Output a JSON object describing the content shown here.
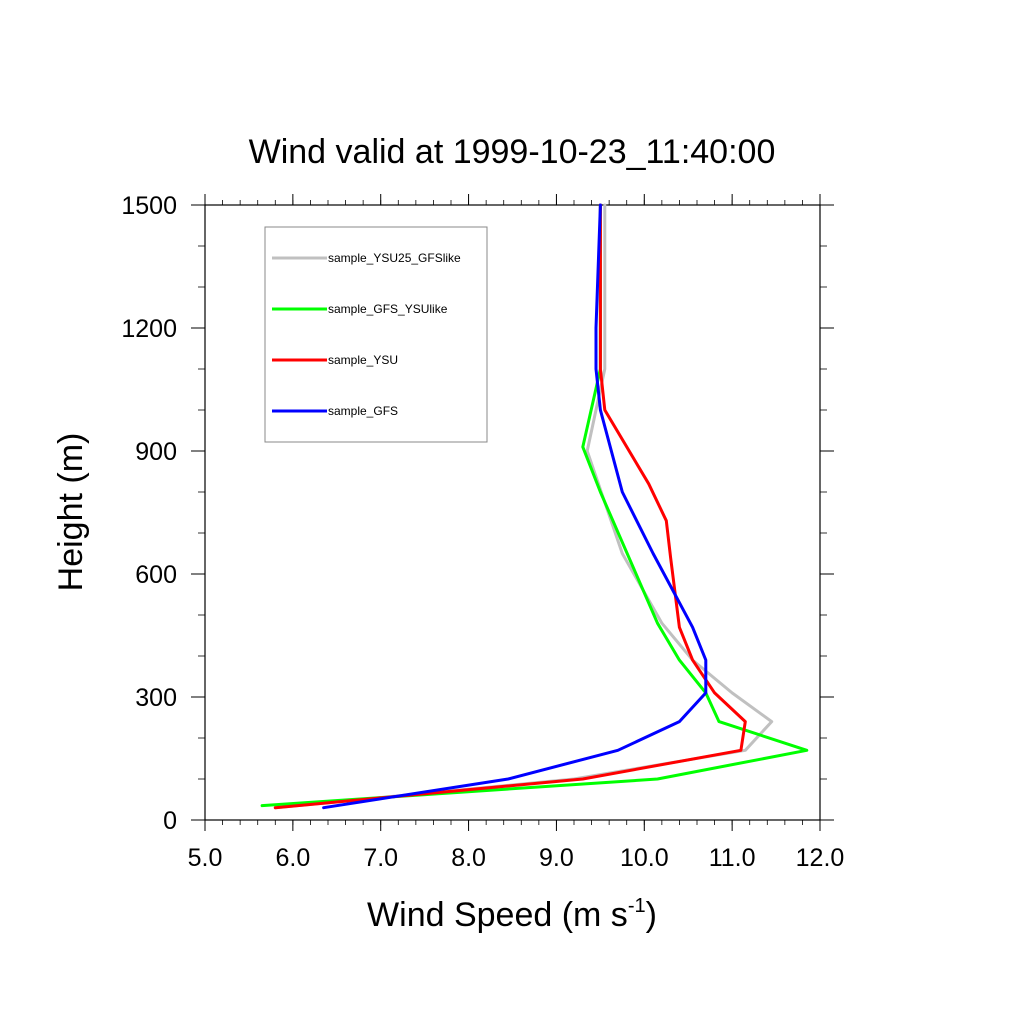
{
  "chart_data": {
    "type": "line",
    "title": "Wind valid at 1999-10-23_11:40:00",
    "xlabel": "Wind Speed (m s",
    "xlabel_sup": "-1",
    "xlabel_end": ")",
    "ylabel": "Height (m)",
    "xlim": [
      5.0,
      12.0
    ],
    "ylim": [
      0,
      1500
    ],
    "x_ticks": [
      5.0,
      6.0,
      7.0,
      8.0,
      9.0,
      10.0,
      11.0,
      12.0
    ],
    "x_tick_labels": [
      "5.0",
      "6.0",
      "7.0",
      "8.0",
      "9.0",
      "10.0",
      "11.0",
      "12.0"
    ],
    "y_ticks": [
      0,
      300,
      600,
      900,
      1200,
      1500
    ],
    "y_tick_labels": [
      "0",
      "300",
      "600",
      "900",
      "1200",
      "1500"
    ],
    "grid": false,
    "legend_position": "top-left",
    "series": [
      {
        "name": "sample_YSU25_GFSlike",
        "color": "#c0c0c0",
        "points": [
          [
            5.8,
            30
          ],
          [
            9.2,
            100
          ],
          [
            11.15,
            170
          ],
          [
            11.45,
            240
          ],
          [
            11.0,
            310
          ],
          [
            10.55,
            390
          ],
          [
            10.2,
            480
          ],
          [
            9.75,
            650
          ],
          [
            9.35,
            900
          ],
          [
            9.45,
            1000
          ],
          [
            9.55,
            1100
          ],
          [
            9.55,
            1200
          ],
          [
            9.55,
            1500
          ]
        ]
      },
      {
        "name": "sample_GFS_YSUlike",
        "color": "#00ff00",
        "points": [
          [
            5.65,
            35
          ],
          [
            10.15,
            100
          ],
          [
            11.85,
            170
          ],
          [
            10.85,
            240
          ],
          [
            10.7,
            310
          ],
          [
            10.4,
            390
          ],
          [
            10.15,
            480
          ],
          [
            9.5,
            800
          ],
          [
            9.3,
            910
          ],
          [
            9.5,
            1100
          ],
          [
            9.5,
            1200
          ],
          [
            9.5,
            1500
          ]
        ]
      },
      {
        "name": "sample_YSU",
        "color": "#ff0000",
        "points": [
          [
            5.8,
            30
          ],
          [
            9.3,
            100
          ],
          [
            11.1,
            170
          ],
          [
            11.15,
            240
          ],
          [
            10.8,
            310
          ],
          [
            10.55,
            390
          ],
          [
            10.4,
            470
          ],
          [
            10.3,
            640
          ],
          [
            10.25,
            730
          ],
          [
            10.05,
            820
          ],
          [
            9.55,
            1000
          ],
          [
            9.5,
            1100
          ],
          [
            9.5,
            1500
          ]
        ]
      },
      {
        "name": "sample_GFS",
        "color": "#0000ff",
        "points": [
          [
            6.35,
            30
          ],
          [
            8.45,
            100
          ],
          [
            9.7,
            170
          ],
          [
            10.4,
            240
          ],
          [
            10.7,
            310
          ],
          [
            10.7,
            390
          ],
          [
            10.55,
            470
          ],
          [
            10.1,
            650
          ],
          [
            9.75,
            800
          ],
          [
            9.5,
            1000
          ],
          [
            9.45,
            1100
          ],
          [
            9.45,
            1200
          ],
          [
            9.5,
            1500
          ]
        ]
      }
    ]
  }
}
